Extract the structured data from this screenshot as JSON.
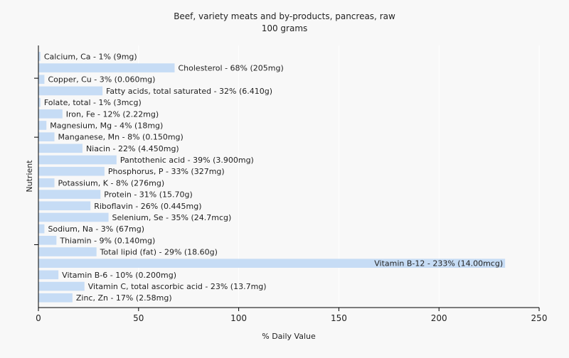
{
  "chart_data": {
    "type": "bar",
    "orientation": "horizontal",
    "title": "Beef, variety meats and by-products, pancreas, raw",
    "subtitle": "100 grams",
    "xlabel": "% Daily Value",
    "ylabel": "Nutrient",
    "xlim": [
      0,
      250
    ],
    "xticks": [
      0,
      50,
      100,
      150,
      200,
      250
    ],
    "grid": true,
    "bar_color": "#c6dcf5",
    "background_color": "#f8f8f8",
    "grid_color": "#ffffff",
    "categories": [
      "Calcium, Ca",
      "Cholesterol",
      "Copper, Cu",
      "Fatty acids, total saturated",
      "Folate, total",
      "Iron, Fe",
      "Magnesium, Mg",
      "Manganese, Mn",
      "Niacin",
      "Pantothenic acid",
      "Phosphorus, P",
      "Potassium, K",
      "Protein",
      "Riboflavin",
      "Selenium, Se",
      "Sodium, Na",
      "Thiamin",
      "Total lipid (fat)",
      "Vitamin B-12",
      "Vitamin B-6",
      "Vitamin C, total ascorbic acid",
      "Zinc, Zn"
    ],
    "values": [
      1,
      68,
      3,
      32,
      1,
      12,
      4,
      8,
      22,
      39,
      33,
      8,
      31,
      26,
      35,
      3,
      9,
      29,
      233,
      10,
      23,
      17
    ],
    "labels": [
      "Calcium, Ca - 1% (9mg)",
      "Cholesterol - 68% (205mg)",
      "Copper, Cu - 3% (0.060mg)",
      "Fatty acids, total saturated - 32% (6.410g)",
      "Folate, total - 1% (3mcg)",
      "Iron, Fe - 12% (2.22mg)",
      "Magnesium, Mg - 4% (18mg)",
      "Manganese, Mn - 8% (0.150mg)",
      "Niacin - 22% (4.450mg)",
      "Pantothenic acid - 39% (3.900mg)",
      "Phosphorus, P - 33% (327mg)",
      "Potassium, K - 8% (276mg)",
      "Protein - 31% (15.70g)",
      "Riboflavin - 26% (0.445mg)",
      "Selenium, Se - 35% (24.7mcg)",
      "Sodium, Na - 3% (67mg)",
      "Thiamin - 9% (0.140mg)",
      "Total lipid (fat) - 29% (18.60g)",
      "Vitamin B-12 - 233% (14.00mcg)",
      "Vitamin B-6 - 10% (0.200mg)",
      "Vitamin C, total ascorbic acid - 23% (13.7mg)",
      "Zinc, Zn - 17% (2.58mg)"
    ]
  }
}
